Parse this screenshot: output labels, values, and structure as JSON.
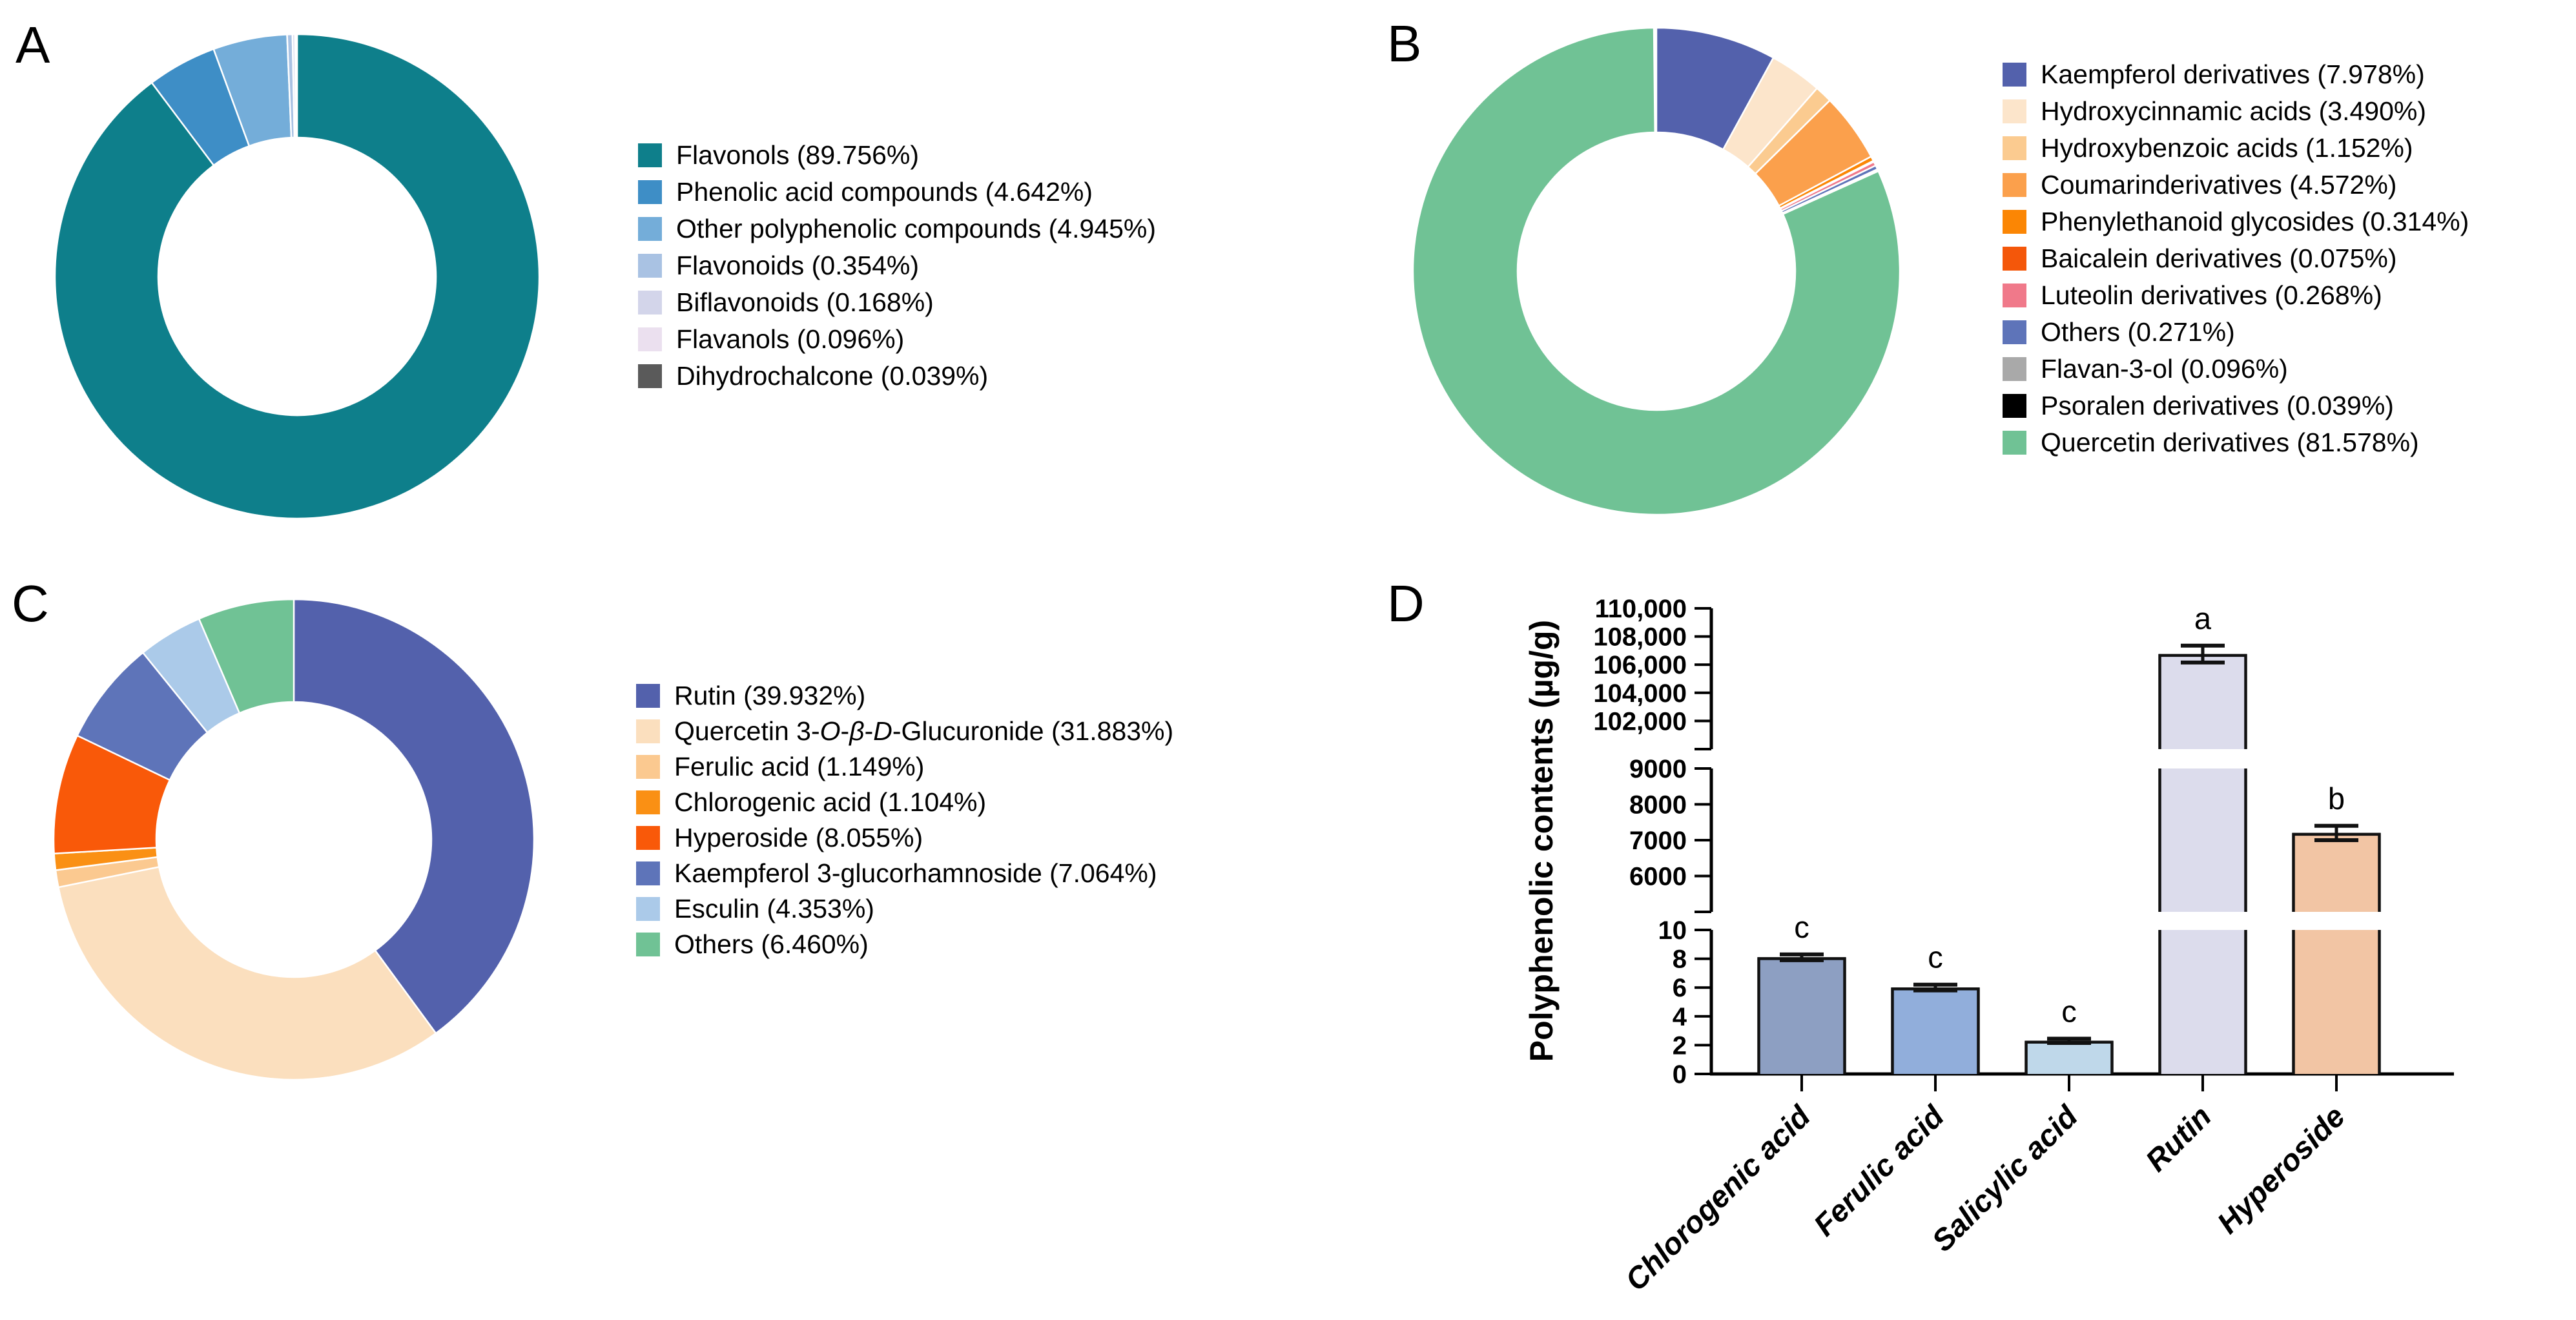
{
  "page": {
    "background": "#ffffff"
  },
  "chart_data": [
    {
      "panel": "A",
      "type": "pie",
      "donut": true,
      "legend_position": "right",
      "slices": [
        {
          "label": "Flavonols",
          "pct": "89.756",
          "value": 89.756,
          "color": "#0E7F8B"
        },
        {
          "label": "Phenolic acid compounds",
          "pct": "4.642",
          "value": 4.642,
          "color": "#3E8EC6"
        },
        {
          "label": "Other polyphenolic compounds",
          "pct": "4.945",
          "value": 4.945,
          "color": "#74ADD9"
        },
        {
          "label": "Flavonoids",
          "pct": "0.354",
          "value": 0.354,
          "color": "#A9C2E3"
        },
        {
          "label": "Biflavonoids",
          "pct": "0.168",
          "value": 0.168,
          "color": "#D3D5EA"
        },
        {
          "label": "Flavanols",
          "pct": "0.096",
          "value": 0.096,
          "color": "#EBE0EF"
        },
        {
          "label": "Dihydrochalcone",
          "pct": "0.039",
          "value": 0.039,
          "color": "#5A5A5A"
        }
      ]
    },
    {
      "panel": "B",
      "type": "pie",
      "donut": true,
      "legend_position": "right",
      "slices": [
        {
          "label": "Kaempferol derivatives",
          "pct": "7.978",
          "value": 7.978,
          "color": "#5361AC"
        },
        {
          "label": "Hydroxycinnamic acids",
          "pct": "3.490",
          "value": 3.49,
          "color": "#FCE5CB"
        },
        {
          "label": "Hydroxybenzoic acids",
          "pct": "1.152",
          "value": 1.152,
          "color": "#FBCB90"
        },
        {
          "label": "Coumarinderivatives",
          "pct": "4.572",
          "value": 4.572,
          "color": "#FBA04C"
        },
        {
          "label": "Phenylethanoid glycosides",
          "pct": "0.314",
          "value": 0.314,
          "color": "#FB8604"
        },
        {
          "label": "Baicalein derivatives",
          "pct": "0.075",
          "value": 0.075,
          "color": "#F4570A"
        },
        {
          "label": "Luteolin derivatives",
          "pct": "0.268",
          "value": 0.268,
          "color": "#F0798A"
        },
        {
          "label": "Others",
          "pct": "0.271",
          "value": 0.271,
          "color": "#5E74B9"
        },
        {
          "label": "Flavan-3-ol",
          "pct": "0.096",
          "value": 0.096,
          "color": "#A9A9A9"
        },
        {
          "label": "Psoralen derivatives",
          "pct": "0.039",
          "value": 0.039,
          "color": "#000000"
        },
        {
          "label": "Quercetin derivatives",
          "pct": "81.578",
          "value": 81.578,
          "color": "#70C295"
        }
      ]
    },
    {
      "panel": "C",
      "type": "pie",
      "donut": true,
      "legend_position": "right",
      "slices": [
        {
          "label": "Rutin",
          "pct": "39.932",
          "value": 39.932,
          "color": "#5361AC"
        },
        {
          "label": "Quercetin 3-O-β-D-Glucuronide",
          "label_html": "Quercetin 3-<i>O</i>-<i>β</i>-<i>D</i>-Glucuronide",
          "pct": "31.883",
          "value": 31.883,
          "color": "#FBDFBE"
        },
        {
          "label": "Ferulic acid",
          "pct": "1.149",
          "value": 1.149,
          "color": "#FBC990"
        },
        {
          "label": "Chlorogenic acid",
          "pct": "1.104",
          "value": 1.104,
          "color": "#FA9014"
        },
        {
          "label": "Hyperoside",
          "pct": "8.055",
          "value": 8.055,
          "color": "#F95909"
        },
        {
          "label": "Kaempferol 3-glucorhamnoside",
          "pct": "7.064",
          "value": 7.064,
          "color": "#5E74B9"
        },
        {
          "label": "Esculin",
          "pct": "4.353",
          "value": 4.353,
          "color": "#ABCAE9"
        },
        {
          "label": "Others",
          "pct": "6.460",
          "value": 6.46,
          "color": "#70C295"
        }
      ]
    },
    {
      "panel": "D",
      "type": "bar",
      "title": "",
      "xlabel": "",
      "ylabel": "Polyphenolic contents (µg/g)",
      "grid": false,
      "categories": [
        "Chlorogenic acid",
        "Ferulic acid",
        "Salicylic acid",
        "Rutin",
        "Hyperoside"
      ],
      "values": [
        8.1,
        6.0,
        2.3,
        106750,
        7200
      ],
      "errors": [
        0.2,
        0.2,
        0.15,
        600,
        200
      ],
      "sig_letters": [
        "c",
        "c",
        "c",
        "a",
        "b"
      ],
      "bar_colors": [
        "#8D9FC2",
        "#91AEDB",
        "#BFD8EA",
        "#DCDCEC",
        "#F2C5A4"
      ],
      "bar_outline": "#111111",
      "broken_axis": true,
      "axis_segments": [
        {
          "min": 0,
          "max": 10,
          "ticks": [
            0,
            2,
            4,
            6,
            8,
            10
          ],
          "tick_labels": [
            "0",
            "2",
            "4",
            "6",
            "8",
            "10"
          ],
          "break_tick_at_min": false
        },
        {
          "min": 5000,
          "max": 9000,
          "ticks": [
            6000,
            7000,
            8000,
            9000
          ],
          "tick_labels": [
            "6000",
            "7000",
            "8000",
            "9000"
          ],
          "break_tick_at_min": true
        },
        {
          "min": 100000,
          "max": 110000,
          "ticks": [
            102000,
            104000,
            106000,
            108000,
            110000
          ],
          "tick_labels": [
            "102,000",
            "104,000",
            "106,000",
            "108,000",
            "110,000"
          ],
          "break_tick_at_min": true
        }
      ]
    }
  ]
}
